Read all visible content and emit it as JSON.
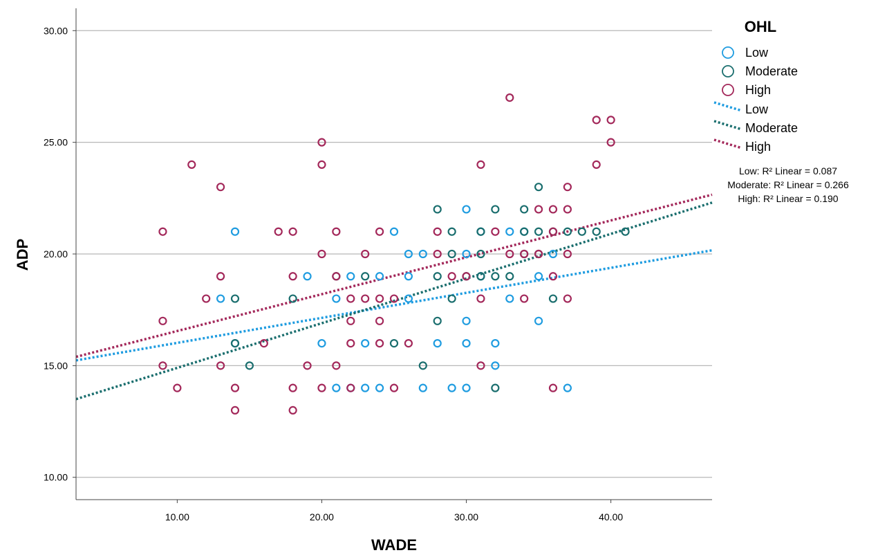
{
  "chart_data": {
    "type": "scatter",
    "xlabel": "WADE",
    "ylabel": "ADP",
    "xlim": [
      3,
      47
    ],
    "ylim": [
      9,
      31
    ],
    "x_ticks": [
      10,
      20,
      30,
      40
    ],
    "x_tick_labels": [
      "10.00",
      "20.00",
      "30.00",
      "40.00"
    ],
    "y_ticks": [
      10,
      15,
      20,
      25,
      30
    ],
    "y_tick_labels": [
      "10.00",
      "15.00",
      "20.00",
      "25.00",
      "30.00"
    ],
    "grid": "horizontal",
    "legend_placement": "right",
    "legend_title": "OHL",
    "series": [
      {
        "name": "Low",
        "color": "#1f9ce0",
        "points": [
          [
            13,
            18
          ],
          [
            14,
            21
          ],
          [
            14,
            16
          ],
          [
            19,
            19
          ],
          [
            20,
            16
          ],
          [
            21,
            18
          ],
          [
            21,
            14
          ],
          [
            22,
            19
          ],
          [
            22,
            14
          ],
          [
            23,
            16
          ],
          [
            23,
            14
          ],
          [
            24,
            19
          ],
          [
            24,
            14
          ],
          [
            25,
            21
          ],
          [
            26,
            20
          ],
          [
            26,
            19
          ],
          [
            26,
            18
          ],
          [
            27,
            20
          ],
          [
            27,
            14
          ],
          [
            28,
            16
          ],
          [
            29,
            14
          ],
          [
            30,
            22
          ],
          [
            30,
            20
          ],
          [
            30,
            17
          ],
          [
            30,
            16
          ],
          [
            30,
            14
          ],
          [
            31,
            21
          ],
          [
            31,
            19
          ],
          [
            32,
            16
          ],
          [
            32,
            15
          ],
          [
            33,
            21
          ],
          [
            33,
            18
          ],
          [
            34,
            21
          ],
          [
            35,
            19
          ],
          [
            35,
            17
          ],
          [
            36,
            20
          ],
          [
            37,
            14
          ]
        ],
        "fit": {
          "intercept": 14.9,
          "slope": 0.112,
          "r2_label": "Low: R² Linear = 0.087"
        }
      },
      {
        "name": "Moderate",
        "color": "#1a6e6e",
        "points": [
          [
            14,
            18
          ],
          [
            14,
            16
          ],
          [
            15,
            15
          ],
          [
            18,
            18
          ],
          [
            21,
            19
          ],
          [
            23,
            19
          ],
          [
            25,
            16
          ],
          [
            27,
            15
          ],
          [
            28,
            22
          ],
          [
            28,
            19
          ],
          [
            28,
            17
          ],
          [
            29,
            21
          ],
          [
            29,
            20
          ],
          [
            29,
            18
          ],
          [
            30,
            19
          ],
          [
            31,
            21
          ],
          [
            31,
            20
          ],
          [
            31,
            19
          ],
          [
            32,
            22
          ],
          [
            32,
            19
          ],
          [
            32,
            14
          ],
          [
            33,
            19
          ],
          [
            34,
            22
          ],
          [
            34,
            21
          ],
          [
            34,
            20
          ],
          [
            35,
            23
          ],
          [
            35,
            21
          ],
          [
            35,
            20
          ],
          [
            36,
            21
          ],
          [
            36,
            18
          ],
          [
            37,
            21
          ],
          [
            38,
            21
          ],
          [
            39,
            21
          ],
          [
            41,
            21
          ]
        ],
        "fit": {
          "intercept": 12.9,
          "slope": 0.2,
          "r2_label": "Moderate: R² Linear = 0.266"
        }
      },
      {
        "name": "High",
        "color": "#a3285a",
        "points": [
          [
            9,
            21
          ],
          [
            9,
            17
          ],
          [
            9,
            15
          ],
          [
            10,
            14
          ],
          [
            11,
            24
          ],
          [
            12,
            18
          ],
          [
            13,
            23
          ],
          [
            13,
            19
          ],
          [
            13,
            15
          ],
          [
            14,
            14
          ],
          [
            14,
            13
          ],
          [
            16,
            16
          ],
          [
            17,
            21
          ],
          [
            18,
            21
          ],
          [
            18,
            19
          ],
          [
            18,
            14
          ],
          [
            18,
            13
          ],
          [
            19,
            15
          ],
          [
            20,
            25
          ],
          [
            20,
            24
          ],
          [
            20,
            20
          ],
          [
            20,
            14
          ],
          [
            21,
            21
          ],
          [
            21,
            19
          ],
          [
            21,
            15
          ],
          [
            22,
            18
          ],
          [
            22,
            17
          ],
          [
            22,
            16
          ],
          [
            22,
            14
          ],
          [
            23,
            20
          ],
          [
            23,
            18
          ],
          [
            24,
            21
          ],
          [
            24,
            18
          ],
          [
            24,
            17
          ],
          [
            24,
            16
          ],
          [
            25,
            18
          ],
          [
            25,
            14
          ],
          [
            26,
            16
          ],
          [
            28,
            21
          ],
          [
            28,
            20
          ],
          [
            29,
            19
          ],
          [
            30,
            19
          ],
          [
            31,
            24
          ],
          [
            31,
            18
          ],
          [
            31,
            15
          ],
          [
            32,
            21
          ],
          [
            33,
            27
          ],
          [
            33,
            20
          ],
          [
            34,
            20
          ],
          [
            34,
            18
          ],
          [
            35,
            22
          ],
          [
            35,
            20
          ],
          [
            36,
            22
          ],
          [
            36,
            21
          ],
          [
            36,
            19
          ],
          [
            36,
            14
          ],
          [
            37,
            23
          ],
          [
            37,
            22
          ],
          [
            37,
            20
          ],
          [
            37,
            18
          ],
          [
            39,
            26
          ],
          [
            39,
            24
          ],
          [
            40,
            26
          ],
          [
            40,
            25
          ]
        ],
        "fit": {
          "intercept": 14.9,
          "slope": 0.165,
          "r2_label": "High: R² Linear = 0.190"
        }
      }
    ]
  }
}
